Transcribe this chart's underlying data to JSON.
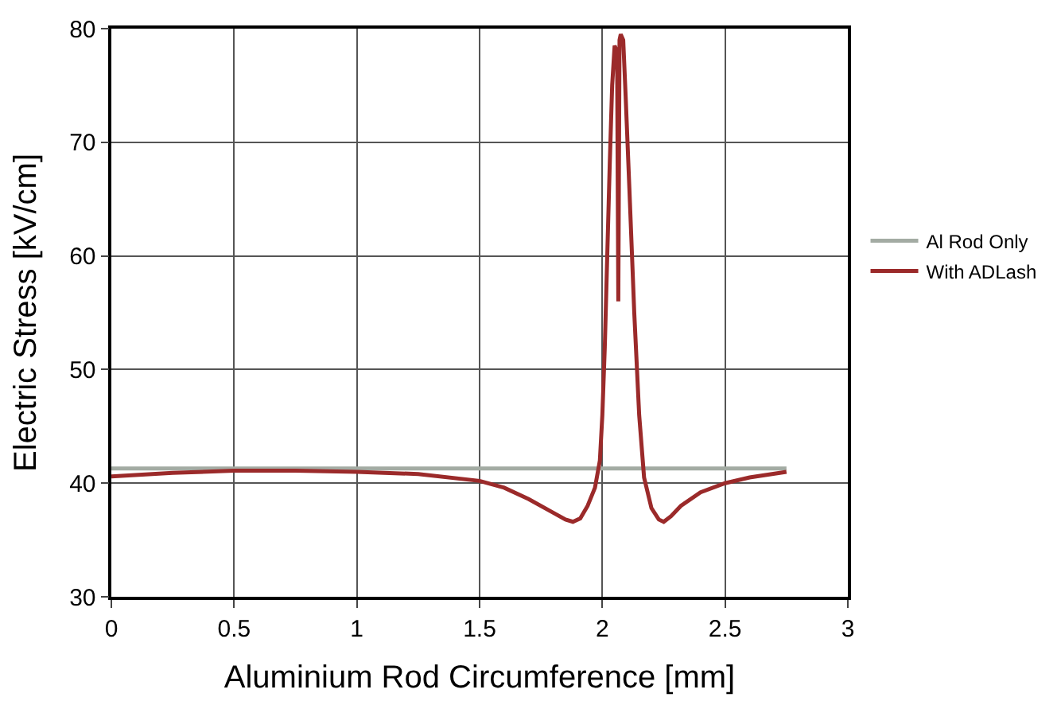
{
  "chart_data": {
    "type": "line",
    "xlabel": "Aluminium Rod Circumference [mm]",
    "ylabel": "Electric Stress [kV/cm]",
    "xlim": [
      0,
      3
    ],
    "xticks": [
      0,
      0.5,
      1,
      1.5,
      2,
      2.5,
      3
    ],
    "ylim": [
      30,
      80
    ],
    "yticks": [
      30,
      40,
      50,
      60,
      70,
      80
    ],
    "grid": true,
    "legend": "right",
    "marker": "none",
    "line_style": "solid",
    "series": [
      {
        "name": "Al Rod Only",
        "color": "#a3aba3",
        "x": [
          0,
          2.75
        ],
        "values": [
          41.3,
          41.3
        ]
      },
      {
        "name": "With ADLash",
        "color": "#9b2a2a",
        "x": [
          0,
          0.25,
          0.5,
          0.75,
          1,
          1.25,
          1.5,
          1.6,
          1.7,
          1.8,
          1.85,
          1.88,
          1.91,
          1.94,
          1.97,
          1.99,
          2.0,
          2.01,
          2.02,
          2.03,
          2.04,
          2.05,
          2.06,
          2.065,
          2.07,
          2.075,
          2.085,
          2.095,
          2.11,
          2.13,
          2.15,
          2.17,
          2.2,
          2.23,
          2.25,
          2.28,
          2.32,
          2.4,
          2.5,
          2.6,
          2.75
        ],
        "values": [
          40.6,
          40.9,
          41.1,
          41.1,
          41.0,
          40.8,
          40.2,
          39.6,
          38.6,
          37.4,
          36.8,
          36.6,
          36.9,
          38.0,
          39.6,
          42,
          46,
          52,
          60,
          68,
          75,
          78.5,
          78,
          56,
          79,
          79.5,
          79,
          74,
          66,
          55,
          46,
          40.5,
          37.8,
          36.8,
          36.6,
          37.1,
          38.0,
          39.2,
          40.0,
          40.5,
          41.0
        ]
      }
    ]
  }
}
